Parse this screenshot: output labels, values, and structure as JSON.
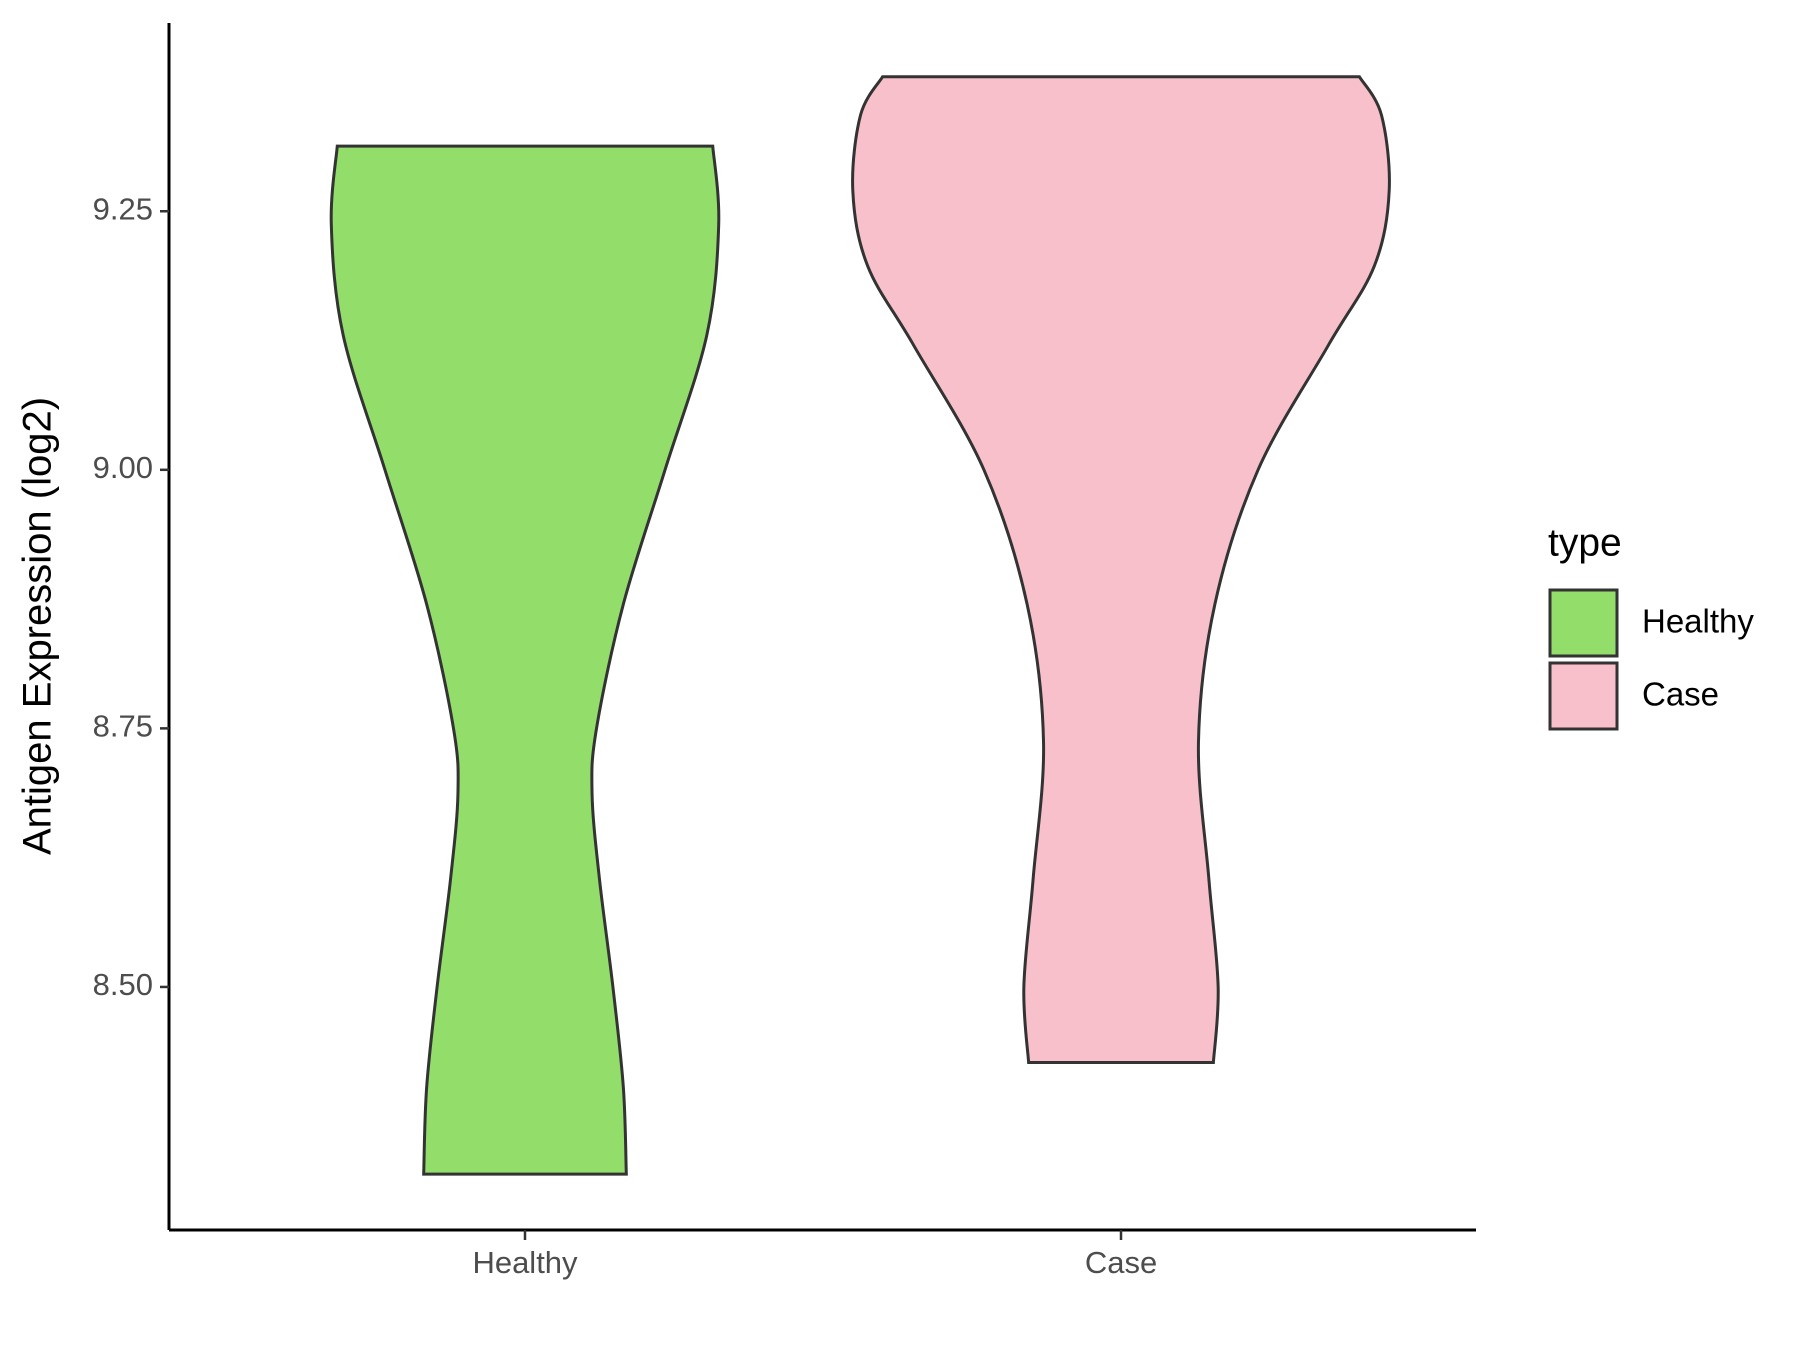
{
  "chart_data": {
    "type": "violin",
    "y_label": "Antigen Expression (log2)",
    "legend_title": "type",
    "categories": [
      "Healthy",
      "Case"
    ],
    "series": [
      {
        "name": "Healthy",
        "color": "#93dd6b",
        "y": [
          9.313,
          9.237,
          9.13,
          9.0,
          8.87,
          8.75,
          8.687,
          8.604,
          8.5,
          8.403,
          8.319
        ],
        "widths": [
          0.63,
          0.65,
          0.61,
          0.47,
          0.33,
          0.24,
          0.225,
          0.25,
          0.295,
          0.33,
          0.34
        ]
      },
      {
        "name": "Case",
        "color": "#f7c0cb",
        "y": [
          9.38,
          9.343,
          9.27,
          9.197,
          9.12,
          9.0,
          8.87,
          8.737,
          8.604,
          8.5,
          8.427
        ],
        "widths": [
          0.8,
          0.874,
          0.9,
          0.85,
          0.695,
          0.46,
          0.315,
          0.26,
          0.295,
          0.326,
          0.31
        ]
      }
    ],
    "ylim": [
      8.265,
      9.432
    ],
    "yticks": [
      {
        "value": 8.5,
        "label": "8.50"
      },
      {
        "value": 8.75,
        "label": "8.75"
      },
      {
        "value": 9.0,
        "label": "9.00"
      },
      {
        "value": 9.25,
        "label": "9.25"
      }
    ],
    "legend": "right"
  }
}
